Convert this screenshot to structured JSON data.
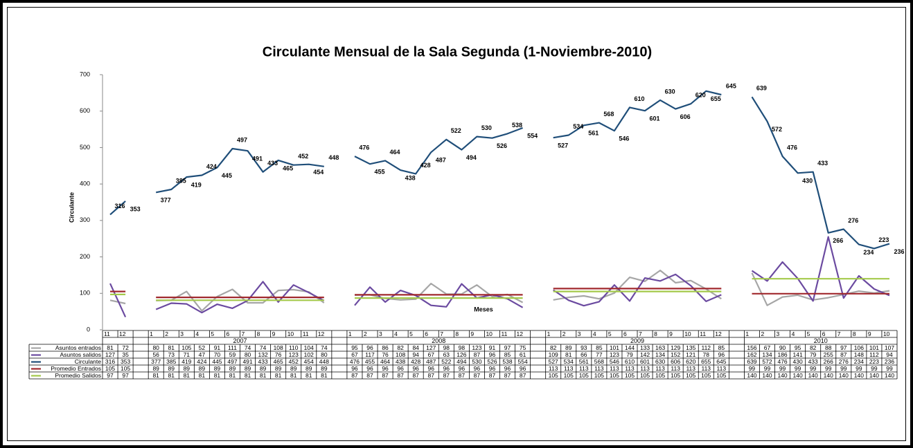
{
  "chart_data": {
    "type": "line",
    "title": "Circulante Mensual de la Sala Segunda (1-Noviembre-2010)",
    "y_label": "Circulante",
    "x_label": "Meses",
    "categories": [
      "11",
      "12",
      null,
      "1",
      "2",
      "3",
      "4",
      "5",
      "6",
      "7",
      "8",
      "9",
      "10",
      "11",
      "12",
      null,
      "1",
      "2",
      "3",
      "4",
      "5",
      "6",
      "7",
      "8",
      "9",
      "10",
      "11",
      "12",
      null,
      "1",
      "2",
      "3",
      "4",
      "5",
      "6",
      "7",
      "8",
      "9",
      "10",
      "11",
      "12",
      null,
      "1",
      "2",
      "3",
      "4",
      "5",
      "6",
      "7",
      "8",
      "9",
      "10"
    ],
    "years": [
      null,
      "2007",
      "2008",
      "2009",
      "2010"
    ],
    "ylim": [
      0,
      700
    ],
    "yticks": [
      0,
      100,
      200,
      300,
      400,
      500,
      600,
      700
    ],
    "grid": false,
    "data_labels_series": 2,
    "series": [
      {
        "name": "Asuntos entrados",
        "color": "#a6a6a6",
        "values": [
          81,
          72,
          null,
          80,
          81,
          105,
          52,
          91,
          111,
          74,
          74,
          108,
          110,
          104,
          74,
          null,
          95,
          96,
          86,
          82,
          84,
          127,
          98,
          98,
          123,
          91,
          97,
          75,
          null,
          82,
          89,
          93,
          85,
          101,
          144,
          133,
          163,
          129,
          135,
          112,
          85,
          null,
          156,
          67,
          90,
          95,
          82,
          88,
          97,
          106,
          101,
          107
        ]
      },
      {
        "name": "Asuntos salidos",
        "color": "#6b4aa0",
        "values": [
          127,
          35,
          null,
          56,
          73,
          71,
          47,
          70,
          59,
          80,
          132,
          76,
          123,
          102,
          80,
          null,
          67,
          117,
          76,
          108,
          94,
          67,
          63,
          126,
          87,
          96,
          85,
          61,
          null,
          109,
          81,
          66,
          77,
          123,
          79,
          142,
          134,
          152,
          121,
          78,
          96,
          null,
          162,
          134,
          186,
          141,
          79,
          255,
          87,
          148,
          112,
          94
        ]
      },
      {
        "name": "Circulante",
        "color": "#1f4e79",
        "values": [
          316,
          353,
          null,
          377,
          385,
          419,
          424,
          445,
          497,
          491,
          433,
          465,
          452,
          454,
          448,
          null,
          476,
          455,
          464,
          438,
          428,
          487,
          522,
          494,
          530,
          526,
          538,
          554,
          null,
          527,
          534,
          561,
          568,
          546,
          610,
          601,
          630,
          606,
          620,
          655,
          645,
          null,
          639,
          572,
          476,
          430,
          433,
          266,
          276,
          234,
          223,
          236
        ]
      },
      {
        "name": "Promedio Entrados",
        "color": "#a0282d",
        "values": [
          105,
          105,
          null,
          89,
          89,
          89,
          89,
          89,
          89,
          89,
          89,
          89,
          89,
          89,
          89,
          null,
          96,
          96,
          96,
          96,
          96,
          96,
          96,
          96,
          96,
          96,
          96,
          96,
          null,
          113,
          113,
          113,
          113,
          113,
          113,
          113,
          113,
          113,
          113,
          113,
          113,
          null,
          99,
          99,
          99,
          99,
          99,
          99,
          99,
          99,
          99,
          99
        ]
      },
      {
        "name": "Promedio Salidos",
        "color": "#a4c94a",
        "values": [
          97,
          97,
          null,
          81,
          81,
          81,
          81,
          81,
          81,
          81,
          81,
          81,
          81,
          81,
          81,
          null,
          87,
          87,
          87,
          87,
          87,
          87,
          87,
          87,
          87,
          87,
          87,
          87,
          null,
          105,
          105,
          105,
          105,
          105,
          105,
          105,
          105,
          105,
          105,
          105,
          105,
          null,
          140,
          140,
          140,
          140,
          140,
          140,
          140,
          140,
          140,
          140
        ]
      }
    ]
  }
}
